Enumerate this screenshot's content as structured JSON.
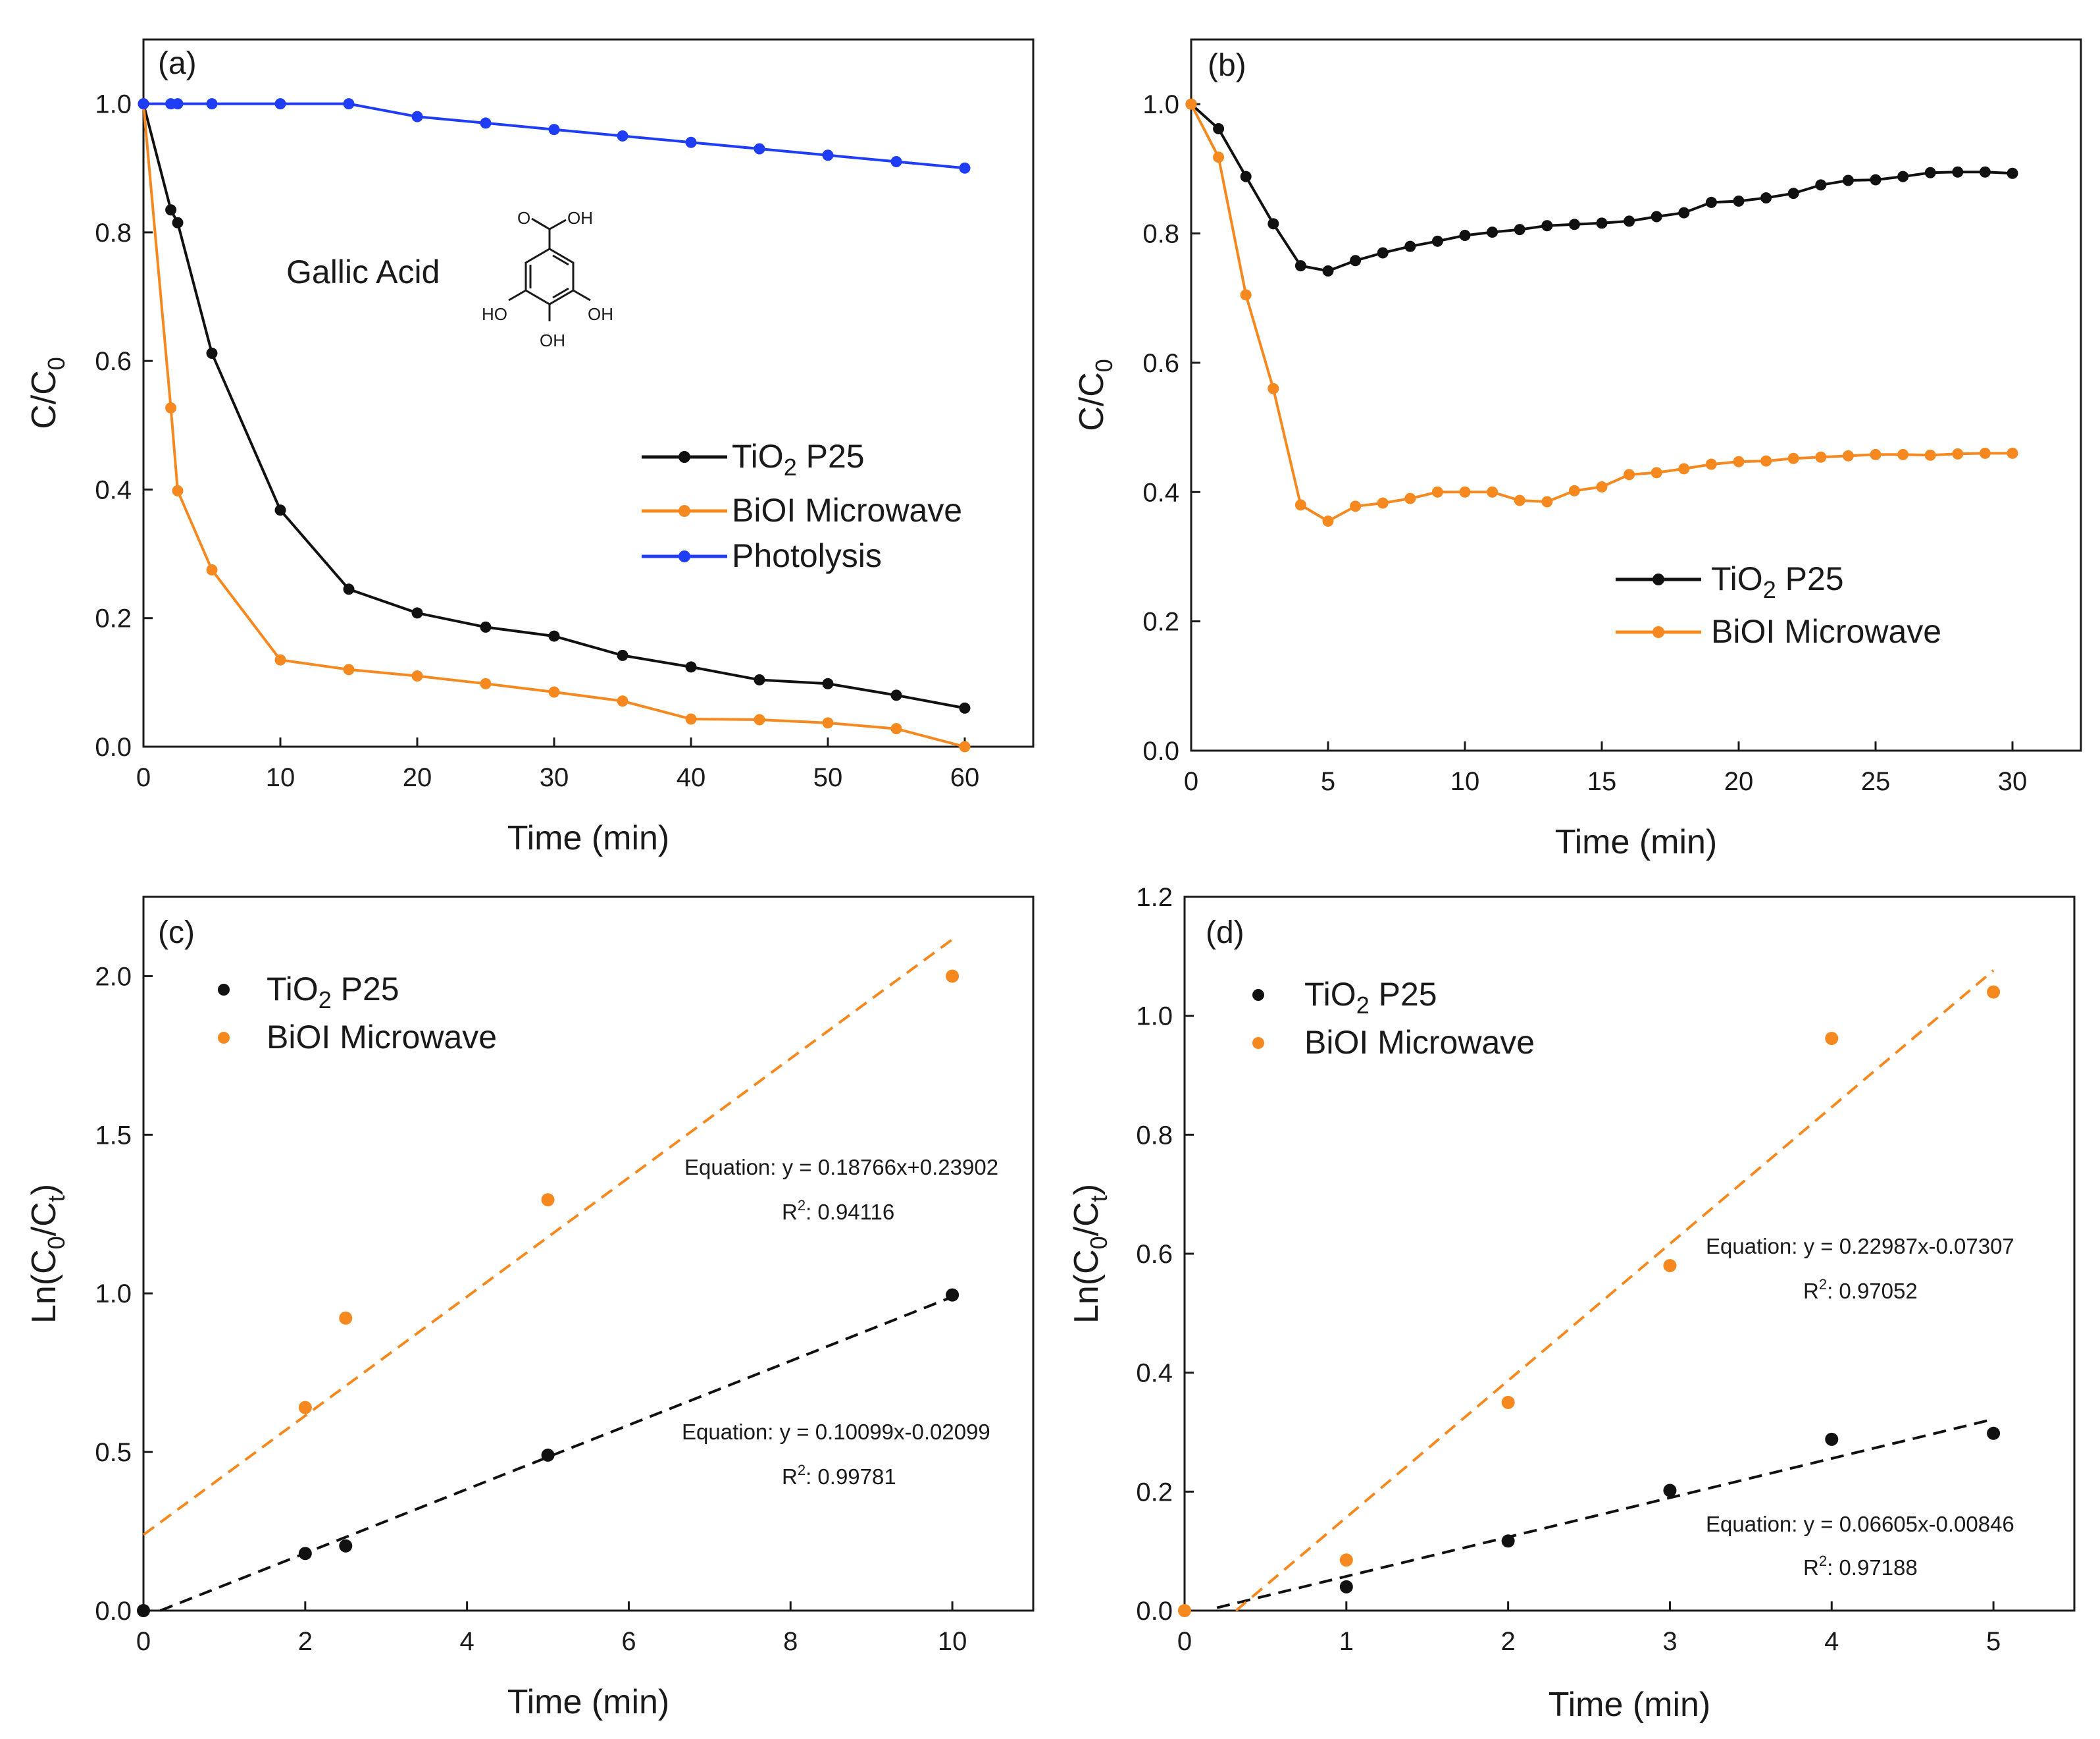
{
  "colors": {
    "tio2": "#111111",
    "bioi": "#f5891f",
    "photolysis": "#1f3df5",
    "axis": "#1a1a1a"
  },
  "chart_data": [
    {
      "id": "a",
      "type": "line",
      "panel_label": "(a)",
      "xlabel": "Time (min)",
      "ylabel": "C/C",
      "ylabel_sub": "0",
      "xlim": [
        0,
        65
      ],
      "ylim": [
        0,
        1.1
      ],
      "xticks": [
        0,
        10,
        20,
        30,
        40,
        50,
        60
      ],
      "yticks": [
        0.0,
        0.2,
        0.4,
        0.6,
        0.8,
        1.0
      ],
      "ytick_labels": [
        "0.0",
        "0.2",
        "0.4",
        "0.6",
        "0.8",
        "1.0"
      ],
      "annotation": "Gallic Acid",
      "molecule_labels": [
        "O",
        "OH",
        "HO",
        "OH",
        "OH"
      ],
      "legend": [
        {
          "name": "TiO",
          "sub": "2",
          "post": " P25",
          "series": 0
        },
        {
          "name": "BiOI Microwave",
          "series": 1
        },
        {
          "name": "Photolysis",
          "series": 2
        }
      ],
      "series": [
        {
          "name": "TiO2 P25",
          "color_key": "tio2",
          "mode": "line",
          "x": [
            0,
            2,
            2.5,
            5,
            10,
            15,
            20,
            25,
            30,
            35,
            40,
            45,
            50,
            55,
            60
          ],
          "y": [
            1.0,
            0.835,
            0.815,
            0.612,
            0.368,
            0.245,
            0.208,
            0.186,
            0.172,
            0.142,
            0.124,
            0.104,
            0.098,
            0.08,
            0.06
          ]
        },
        {
          "name": "BiOI Microwave",
          "color_key": "bioi",
          "mode": "line",
          "x": [
            0,
            2,
            2.5,
            5,
            10,
            15,
            20,
            25,
            30,
            35,
            40,
            45,
            50,
            55,
            60
          ],
          "y": [
            1.0,
            0.527,
            0.398,
            0.275,
            0.135,
            0.12,
            0.11,
            0.098,
            0.085,
            0.071,
            0.043,
            0.042,
            0.037,
            0.028,
            0.0
          ]
        },
        {
          "name": "Photolysis",
          "color_key": "photolysis",
          "mode": "line",
          "x": [
            0,
            2,
            2.5,
            5,
            10,
            15,
            20,
            25,
            30,
            35,
            40,
            45,
            50,
            55,
            60
          ],
          "y": [
            1.0,
            1.0,
            1.0,
            1.0,
            1.0,
            1.0,
            0.98,
            0.97,
            0.96,
            0.95,
            0.94,
            0.93,
            0.92,
            0.91,
            0.9
          ]
        }
      ]
    },
    {
      "id": "b",
      "type": "line",
      "panel_label": "(b)",
      "xlabel": "Time (min)",
      "ylabel": "C/C",
      "ylabel_sub": "0",
      "xlim": [
        0,
        32.5
      ],
      "ylim": [
        0,
        1.1
      ],
      "xticks": [
        0,
        5,
        10,
        15,
        20,
        25,
        30
      ],
      "yticks": [
        0.0,
        0.2,
        0.4,
        0.6,
        0.8,
        1.0
      ],
      "ytick_labels": [
        "0.0",
        "0.2",
        "0.4",
        "0.6",
        "0.8",
        "1.0"
      ],
      "legend": [
        {
          "name": "TiO",
          "sub": "2",
          "post": " P25",
          "series": 0
        },
        {
          "name": "BiOI Microwave",
          "series": 1
        }
      ],
      "series": [
        {
          "name": "TiO2 P25",
          "color_key": "tio2",
          "mode": "line",
          "x": [
            0,
            1,
            2,
            3,
            4,
            5,
            6,
            7,
            8,
            9,
            10,
            11,
            12,
            13,
            14,
            15,
            16,
            17,
            18,
            19,
            20,
            21,
            22,
            23,
            24,
            25,
            26,
            27,
            28,
            29,
            30
          ],
          "y": [
            1.0,
            0.962,
            0.888,
            0.815,
            0.75,
            0.742,
            0.758,
            0.77,
            0.78,
            0.788,
            0.797,
            0.802,
            0.806,
            0.812,
            0.814,
            0.816,
            0.819,
            0.826,
            0.832,
            0.848,
            0.85,
            0.855,
            0.862,
            0.875,
            0.882,
            0.883,
            0.888,
            0.894,
            0.895,
            0.895,
            0.893
          ]
        },
        {
          "name": "BiOI Microwave",
          "color_key": "bioi",
          "mode": "line",
          "x": [
            0,
            1,
            2,
            3,
            4,
            5,
            6,
            7,
            8,
            9,
            10,
            11,
            12,
            13,
            14,
            15,
            16,
            17,
            18,
            19,
            20,
            21,
            22,
            23,
            24,
            25,
            26,
            27,
            28,
            29,
            30
          ],
          "y": [
            1.0,
            0.918,
            0.705,
            0.56,
            0.38,
            0.355,
            0.378,
            0.383,
            0.39,
            0.4,
            0.4,
            0.4,
            0.387,
            0.385,
            0.402,
            0.408,
            0.427,
            0.43,
            0.436,
            0.443,
            0.447,
            0.448,
            0.452,
            0.454,
            0.456,
            0.458,
            0.458,
            0.457,
            0.459,
            0.46,
            0.46
          ]
        }
      ]
    },
    {
      "id": "c",
      "type": "scatter",
      "panel_label": "(c)",
      "xlabel": "Time (min)",
      "ylabel": "Ln(C",
      "ylabel_sub": "0",
      "ylabel_mid": "/C",
      "ylabel_sub2": "t",
      "ylabel_post": ")",
      "xlim": [
        0,
        11
      ],
      "ylim": [
        0,
        2.25
      ],
      "xticks": [
        0,
        2,
        4,
        6,
        8,
        10
      ],
      "yticks": [
        0.0,
        0.5,
        1.0,
        1.5,
        2.0
      ],
      "ytick_labels": [
        "0.0",
        "0.5",
        "1.0",
        "1.5",
        "2.0"
      ],
      "legend": [
        {
          "name": "TiO",
          "sub": "2",
          "post": " P25",
          "series": 0
        },
        {
          "name": "BiOI Microwave",
          "series": 1
        }
      ],
      "series": [
        {
          "name": "TiO2 P25",
          "color_key": "tio2",
          "mode": "scatter",
          "x": [
            0,
            2,
            2.5,
            5,
            10
          ],
          "y": [
            0.0,
            0.18,
            0.204,
            0.49,
            0.995
          ],
          "fit": {
            "slope": 0.10099,
            "intercept": -0.02099,
            "x": [
              0.2078,
              10
            ]
          }
        },
        {
          "name": "BiOI Microwave",
          "color_key": "bioi",
          "mode": "scatter",
          "x": [
            2,
            2.5,
            5,
            10
          ],
          "y": [
            0.64,
            0.922,
            1.295,
            2.0
          ],
          "fit": {
            "slope": 0.18766,
            "intercept": 0.23902,
            "x": [
              0,
              10
            ]
          }
        }
      ],
      "equations": [
        {
          "eq": "Equation: y = 0.18766x+0.23902",
          "r2_pre": "R",
          "r2_sup": "2",
          "r2": ": 0.94116"
        },
        {
          "eq": "Equation: y = 0.10099x-0.02099",
          "r2_pre": "R",
          "r2_sup": "2",
          "r2": ": 0.99781"
        }
      ]
    },
    {
      "id": "d",
      "type": "scatter",
      "panel_label": "(d)",
      "xlabel": "Time (min)",
      "ylabel": "Ln(C",
      "ylabel_sub": "0",
      "ylabel_mid": "/C",
      "ylabel_sub2": "t",
      "ylabel_post": ")",
      "xlim": [
        0,
        5.5
      ],
      "ylim": [
        0,
        1.2
      ],
      "xticks": [
        0,
        1,
        2,
        3,
        4,
        5
      ],
      "yticks": [
        0.0,
        0.2,
        0.4,
        0.6,
        0.8,
        1.0,
        1.2
      ],
      "ytick_labels": [
        "0.0",
        "0.2",
        "0.4",
        "0.6",
        "0.8",
        "1.0",
        "1.2"
      ],
      "legend": [
        {
          "name": "TiO",
          "sub": "2",
          "post": " P25",
          "series": 0
        },
        {
          "name": "BiOI Microwave",
          "series": 1
        }
      ],
      "series": [
        {
          "name": "TiO2 P25",
          "color_key": "tio2",
          "mode": "scatter",
          "x": [
            1,
            2,
            3,
            4,
            5
          ],
          "y": [
            0.04,
            0.117,
            0.202,
            0.288,
            0.298
          ],
          "fit": {
            "slope": 0.06605,
            "intercept": -0.00846,
            "x": [
              0.2,
              5
            ]
          }
        },
        {
          "name": "BiOI Microwave",
          "color_key": "bioi",
          "mode": "scatter",
          "x": [
            0,
            1,
            2,
            3,
            4,
            5
          ],
          "y": [
            0.0,
            0.085,
            0.35,
            0.58,
            0.962,
            1.04
          ],
          "fit": {
            "slope": 0.22987,
            "intercept": -0.07307,
            "x": [
              0.3179,
              5
            ]
          }
        }
      ],
      "equations": [
        {
          "eq": "Equation: y = 0.22987x-0.07307",
          "r2_pre": "R",
          "r2_sup": "2",
          "r2": ": 0.97052"
        },
        {
          "eq": "Equation: y = 0.06605x-0.00846",
          "r2_pre": "R",
          "r2_sup": "2",
          "r2": ": 0.97188"
        }
      ]
    }
  ]
}
